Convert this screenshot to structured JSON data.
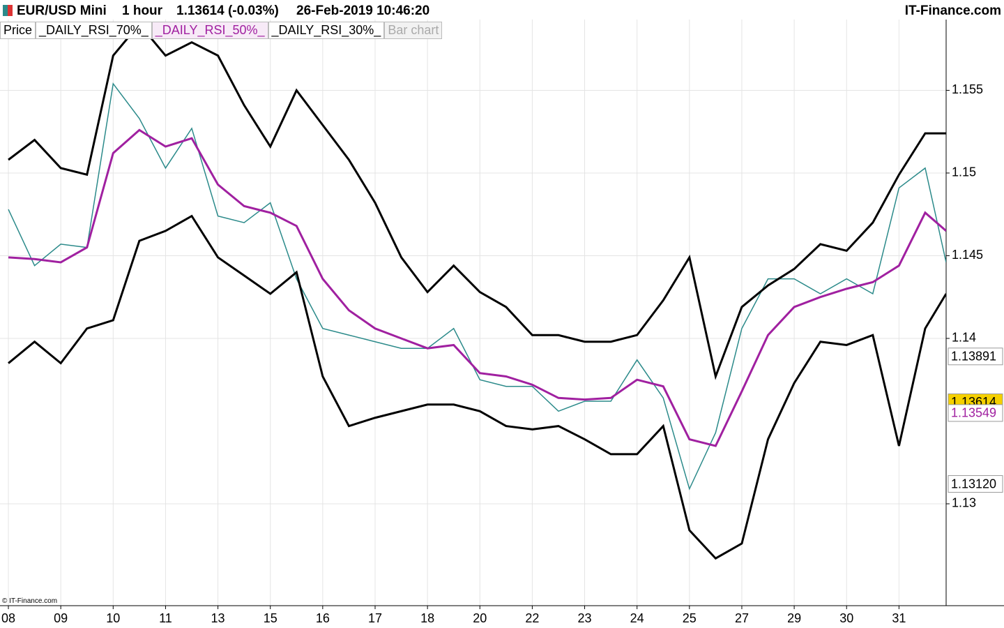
{
  "header": {
    "symbol": "EUR/USD Mini",
    "interval": "1 hour",
    "quote": "1.13614 (-0.03%)",
    "timestamp": "26-Feb-2019 10:46:20",
    "brand": "IT-Finance.com"
  },
  "toolbar": {
    "bar_chart": "Bar chart"
  },
  "footer": "© IT-Finance.com",
  "chart_data": {
    "type": "line",
    "x": [
      0,
      0.5,
      1,
      1.5,
      2,
      2.5,
      3,
      3.5,
      4,
      4.5,
      5,
      5.5,
      6,
      6.5,
      7,
      7.5,
      8,
      8.5,
      9,
      9.5,
      10,
      10.5,
      11,
      11.5,
      12,
      12.5,
      13,
      13.5,
      14,
      14.5,
      15,
      15.5,
      16,
      16.5,
      17,
      17.5,
      17.9
    ],
    "xlim": [
      -0.16,
      17.9
    ],
    "xticks": [
      {
        "value": 0,
        "label": "08"
      },
      {
        "value": 1,
        "label": "09"
      },
      {
        "value": 2,
        "label": "10"
      },
      {
        "value": 3,
        "label": "11"
      },
      {
        "value": 4,
        "label": "13"
      },
      {
        "value": 5,
        "label": "15"
      },
      {
        "value": 6,
        "label": "16"
      },
      {
        "value": 7,
        "label": "17"
      },
      {
        "value": 8,
        "label": "18"
      },
      {
        "value": 9,
        "label": "20"
      },
      {
        "value": 10,
        "label": "22"
      },
      {
        "value": 11,
        "label": "23"
      },
      {
        "value": 12,
        "label": "24"
      },
      {
        "value": 13,
        "label": "25"
      },
      {
        "value": 14,
        "label": "27"
      },
      {
        "value": 15,
        "label": "29"
      },
      {
        "value": 16,
        "label": "30"
      },
      {
        "value": 17,
        "label": "31"
      }
    ],
    "ylim": [
      1.12384,
      1.15928
    ],
    "yticks": [
      1.155,
      1.15,
      1.145,
      1.14,
      1.13
    ],
    "grid": true,
    "series": [
      {
        "name": "Price",
        "color": "#2b8a8a",
        "values": [
          1.1478,
          1.1444,
          1.1457,
          1.1455,
          1.1554,
          1.1533,
          1.1503,
          1.1527,
          1.1474,
          1.147,
          1.1482,
          1.1436,
          1.1406,
          1.1402,
          1.1398,
          1.1394,
          1.1394,
          1.1406,
          1.1375,
          1.1371,
          1.1371,
          1.1356,
          1.1362,
          1.1362,
          1.1387,
          1.1364,
          1.1309,
          1.1343,
          1.1406,
          1.1436,
          1.1436,
          1.1427,
          1.1436,
          1.1427,
          1.1491,
          1.1503,
          1.1446
        ]
      },
      {
        "name": "_DAILY_RSI_70%_",
        "color": "#000000",
        "values": [
          1.1508,
          1.152,
          1.1503,
          1.1499,
          1.1571,
          1.159,
          1.1571,
          1.1579,
          1.1571,
          1.1541,
          1.1516,
          1.155,
          1.1529,
          1.1508,
          1.1482,
          1.1449,
          1.1428,
          1.1444,
          1.1428,
          1.1419,
          1.1402,
          1.1402,
          1.1398,
          1.1398,
          1.1402,
          1.1423,
          1.1449,
          1.1377,
          1.1419,
          1.1432,
          1.1442,
          1.1457,
          1.1453,
          1.147,
          1.1499,
          1.1524,
          1.1524
        ]
      },
      {
        "name": "_DAILY_RSI_50%_",
        "color": "#a020a0",
        "values": [
          1.1449,
          1.1448,
          1.1446,
          1.1455,
          1.1512,
          1.1526,
          1.1516,
          1.1521,
          1.1493,
          1.148,
          1.1476,
          1.1468,
          1.1436,
          1.1417,
          1.1406,
          1.14,
          1.1394,
          1.1396,
          1.1379,
          1.1377,
          1.1372,
          1.1364,
          1.1363,
          1.1364,
          1.1375,
          1.1371,
          1.1339,
          1.1335,
          1.1368,
          1.1402,
          1.1419,
          1.1425,
          1.143,
          1.1434,
          1.1444,
          1.1476,
          1.1465
        ]
      },
      {
        "name": "_DAILY_RSI_30%_",
        "color": "#000000",
        "values": [
          1.1385,
          1.1398,
          1.1385,
          1.1406,
          1.1411,
          1.1459,
          1.1465,
          1.1474,
          1.1449,
          1.1438,
          1.1427,
          1.144,
          1.1377,
          1.1347,
          1.1352,
          1.1356,
          1.136,
          1.136,
          1.1356,
          1.1347,
          1.1345,
          1.1347,
          1.1339,
          1.133,
          1.133,
          1.1347,
          1.1284,
          1.1267,
          1.1276,
          1.1339,
          1.1373,
          1.1398,
          1.1396,
          1.1402,
          1.1335,
          1.1406,
          1.1427
        ]
      }
    ],
    "markers": {
      "values": [
        1.13891,
        1.13614,
        1.13549,
        1.1312
      ],
      "value_labels": [
        "1.13891",
        "1.13614",
        "1.13549",
        "1.13120"
      ],
      "backgrounds": [
        "#ffffff",
        "#f5d000",
        "#ffffff",
        "#ffffff"
      ],
      "text_colors": [
        "#000000",
        "#000000",
        "#a020a0",
        "#000000"
      ]
    }
  }
}
